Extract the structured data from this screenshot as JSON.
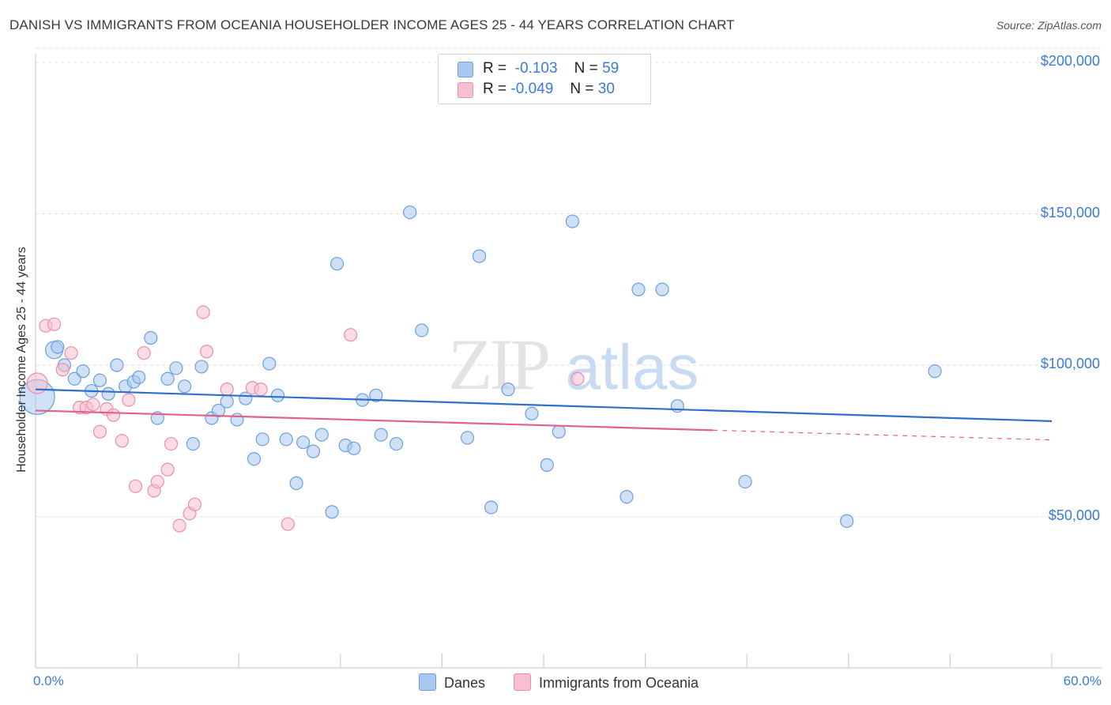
{
  "header": {
    "title": "DANISH VS IMMIGRANTS FROM OCEANIA HOUSEHOLDER INCOME AGES 25 - 44 YEARS CORRELATION CHART",
    "source": "Source: ZipAtlas.com"
  },
  "watermark": {
    "zip": "ZIP",
    "atlas": "atlas"
  },
  "stats_legend": {
    "rows": [
      {
        "r_label": "R =",
        "r_value": "-0.103",
        "n_label": "N =",
        "n_value": "59"
      },
      {
        "r_label": "R =",
        "r_value": "-0.049",
        "n_label": "N =",
        "n_value": "30"
      }
    ]
  },
  "colors": {
    "danes_fill": "#a9c8f0",
    "danes_stroke": "#6a9fe0",
    "danes_line": "#2f6fc9",
    "oceania_fill": "#f7bfd0",
    "oceania_stroke": "#ea8fab",
    "oceania_line": "#e0628a",
    "axis_text": "#3a7bd5",
    "grid": "#e2e2e2"
  },
  "chart_data": {
    "type": "scatter",
    "title": "DANISH VS IMMIGRANTS FROM OCEANIA HOUSEHOLDER INCOME AGES 25 - 44 YEARS CORRELATION CHART",
    "xlabel": "",
    "ylabel": "Householder Income Ages 25 - 44 years",
    "xlim": [
      0,
      60
    ],
    "ylim": [
      0,
      210000
    ],
    "x_tick_labels": {
      "min": "0.0%",
      "max": "60.0%"
    },
    "y_ticks": [
      {
        "value": 50000,
        "label": "$50,000"
      },
      {
        "value": 100000,
        "label": "$100,000"
      },
      {
        "value": 150000,
        "label": "$150,000"
      },
      {
        "value": 200000,
        "label": "$200,000"
      }
    ],
    "legend_labels": [
      "Danes",
      "Immigrants from Oceania"
    ],
    "series": [
      {
        "name": "Danes",
        "r": -0.103,
        "n": 59,
        "trend": {
          "x0": 0,
          "y0": 92000,
          "x1": 60,
          "y1": 81500
        },
        "points": [
          [
            0.1,
            89500,
            22
          ],
          [
            1.1,
            105000,
            11
          ],
          [
            1.3,
            106000,
            8
          ],
          [
            1.7,
            100000,
            8
          ],
          [
            2.3,
            95500,
            8
          ],
          [
            2.8,
            98000,
            8
          ],
          [
            3.3,
            91500,
            8
          ],
          [
            3.8,
            95000,
            8
          ],
          [
            4.3,
            90500,
            8
          ],
          [
            4.8,
            100000,
            8
          ],
          [
            5.3,
            93000,
            8
          ],
          [
            5.8,
            94500,
            8
          ],
          [
            6.1,
            96000,
            8
          ],
          [
            6.8,
            109000,
            8
          ],
          [
            7.2,
            82500,
            8
          ],
          [
            7.8,
            95500,
            8
          ],
          [
            8.3,
            99000,
            8
          ],
          [
            8.8,
            93000,
            8
          ],
          [
            9.3,
            74000,
            8
          ],
          [
            9.8,
            99500,
            8
          ],
          [
            10.4,
            82500,
            8
          ],
          [
            10.8,
            85000,
            8
          ],
          [
            11.3,
            88000,
            8
          ],
          [
            11.9,
            82000,
            8
          ],
          [
            12.4,
            89000,
            8
          ],
          [
            12.9,
            69000,
            8
          ],
          [
            13.4,
            75500,
            8
          ],
          [
            13.8,
            100500,
            8
          ],
          [
            14.3,
            90000,
            8
          ],
          [
            14.8,
            75500,
            8
          ],
          [
            15.4,
            61000,
            8
          ],
          [
            15.8,
            74500,
            8
          ],
          [
            16.4,
            71500,
            8
          ],
          [
            16.9,
            77000,
            8
          ],
          [
            17.5,
            51500,
            8
          ],
          [
            17.8,
            133500,
            8
          ],
          [
            18.3,
            73500,
            8
          ],
          [
            18.8,
            72500,
            8
          ],
          [
            19.3,
            88500,
            8
          ],
          [
            20.1,
            90000,
            8
          ],
          [
            20.4,
            77000,
            8
          ],
          [
            21.3,
            74000,
            8
          ],
          [
            22.1,
            150500,
            8
          ],
          [
            22.8,
            111500,
            8
          ],
          [
            25.5,
            76000,
            8
          ],
          [
            26.2,
            136000,
            8
          ],
          [
            26.9,
            53000,
            8
          ],
          [
            27.9,
            92000,
            8
          ],
          [
            29.3,
            84000,
            8
          ],
          [
            30.2,
            67000,
            8
          ],
          [
            30.9,
            78000,
            8
          ],
          [
            31.7,
            147500,
            8
          ],
          [
            34.9,
            56500,
            8
          ],
          [
            35.6,
            125000,
            8
          ],
          [
            37.0,
            125000,
            8
          ],
          [
            37.9,
            86500,
            8
          ],
          [
            41.9,
            61500,
            8
          ],
          [
            47.9,
            48500,
            8
          ],
          [
            53.1,
            98000,
            8
          ]
        ]
      },
      {
        "name": "Immigrants from Oceania",
        "r": -0.049,
        "n": 30,
        "trend": {
          "x0": 0,
          "y0": 85000,
          "x1": 40,
          "y1": 78500
        },
        "trend_dashed": {
          "x0": 40,
          "y0": 78500,
          "x1": 60,
          "y1": 75300
        },
        "points": [
          [
            0.1,
            94000,
            13
          ],
          [
            0.6,
            113000,
            8
          ],
          [
            1.1,
            113500,
            8
          ],
          [
            1.6,
            98500,
            8
          ],
          [
            2.1,
            104000,
            8
          ],
          [
            2.6,
            86000,
            8
          ],
          [
            3.0,
            86000,
            8
          ],
          [
            3.4,
            87000,
            8
          ],
          [
            3.8,
            78000,
            8
          ],
          [
            4.2,
            85500,
            8
          ],
          [
            4.6,
            83500,
            8
          ],
          [
            5.1,
            75000,
            8
          ],
          [
            5.5,
            88500,
            8
          ],
          [
            5.9,
            60000,
            8
          ],
          [
            6.4,
            104000,
            8
          ],
          [
            7.0,
            58500,
            8
          ],
          [
            7.2,
            61500,
            8
          ],
          [
            7.8,
            65500,
            8
          ],
          [
            8.0,
            74000,
            8
          ],
          [
            8.5,
            47000,
            8
          ],
          [
            9.1,
            51000,
            8
          ],
          [
            9.4,
            54000,
            8
          ],
          [
            9.9,
            117500,
            8
          ],
          [
            10.1,
            104500,
            8
          ],
          [
            11.3,
            92000,
            8
          ],
          [
            12.8,
            92500,
            8
          ],
          [
            13.3,
            92000,
            8
          ],
          [
            14.9,
            47500,
            8
          ],
          [
            18.6,
            110000,
            8
          ],
          [
            32.0,
            95500,
            8
          ]
        ]
      }
    ]
  }
}
